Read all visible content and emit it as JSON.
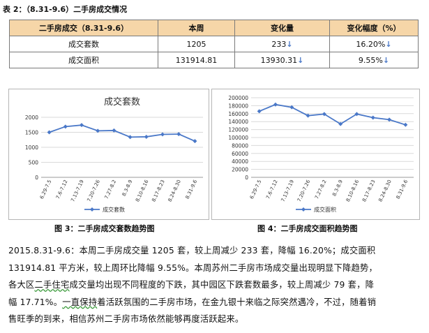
{
  "heading": "表 2：（8.31-9.6）二手房成交情况",
  "table": {
    "headers": [
      "二手房成交（8.31-9.6）",
      "本周",
      "变化量",
      "变化幅度（%）"
    ],
    "rows": [
      {
        "label": "成交套数",
        "week": "1205",
        "change": "233",
        "pct": "16.20%",
        "arrow": "↓"
      },
      {
        "label": "成交面积",
        "week": "131914.81",
        "change": "13930.31",
        "pct": "9.55%",
        "arrow": "↓"
      }
    ]
  },
  "charts": [
    {
      "chart_data": {
        "type": "line",
        "title": "成交套数",
        "categories": [
          "6.29-7.5",
          "7.6-7.12",
          "7.13-7.19",
          "7.20-7.26",
          "7.27-8.2",
          "8.3-8.9",
          "8.10-8.16",
          "8.17-8.23",
          "8.24-8.30",
          "8.31-9.6"
        ],
        "series": [
          {
            "name": "成交套数",
            "values": [
              1500,
              1690,
              1740,
              1550,
              1560,
              1340,
              1350,
              1430,
              1440,
              1205
            ]
          }
        ],
        "yticks": [
          "0",
          "500",
          "1000",
          "1500",
          "2000"
        ],
        "ylim": [
          0,
          2000
        ],
        "grid": true,
        "legend": "bottom",
        "color": "#4a78c8"
      },
      "caption": "图 3：二手房成交套数趋势图"
    },
    {
      "chart_data": {
        "type": "line",
        "title": "",
        "categories": [
          "6.29-7.5",
          "7.6-7.12",
          "7.13-7.19",
          "7.20-7.26",
          "7.27-8.2",
          "8.3-8.9",
          "8.10-8.16",
          "8.17-8.23",
          "8.24-8.30",
          "8.31-9.6"
        ],
        "series": [
          {
            "name": "成交面积",
            "values": [
              166000,
              183000,
              176000,
              155000,
              159000,
              134000,
              159000,
              150000,
              145000,
              131915
            ]
          }
        ],
        "yticks": [
          "0",
          "20000",
          "40000",
          "60000",
          "80000",
          "100000",
          "120000",
          "140000",
          "160000",
          "180000",
          "200000"
        ],
        "ylim": [
          0,
          200000
        ],
        "grid": true,
        "legend": "bottom",
        "color": "#4a78c8"
      },
      "caption": "图 4：二手房成交面积趋势图"
    }
  ],
  "paragraph": {
    "line1": "2015.8.31-9.6：本周二手房成交量 1205 套，较上周减少 233 套，降幅 16.20%；成交面积",
    "line2": "131914.81 平方米，较上周环比降幅 9.55%。本周苏州二手房市场成交量出现明显下降趋势，",
    "line3a": "各大区",
    "line3u": "二手住宅",
    "line3b": "成交量均出现不同程度的下跌，其中园区下跌套数最多，较上周减少 79 套，降",
    "line4a": "幅 17.71%。",
    "line4u": "一直保持",
    "line4b": "着活跃氛围的二手房市场，在金九银十来临之际突然遇冷，不过，随着销",
    "line5": "售旺季的到来，相信苏州二手房市场依然能够再度活跃起来。"
  }
}
